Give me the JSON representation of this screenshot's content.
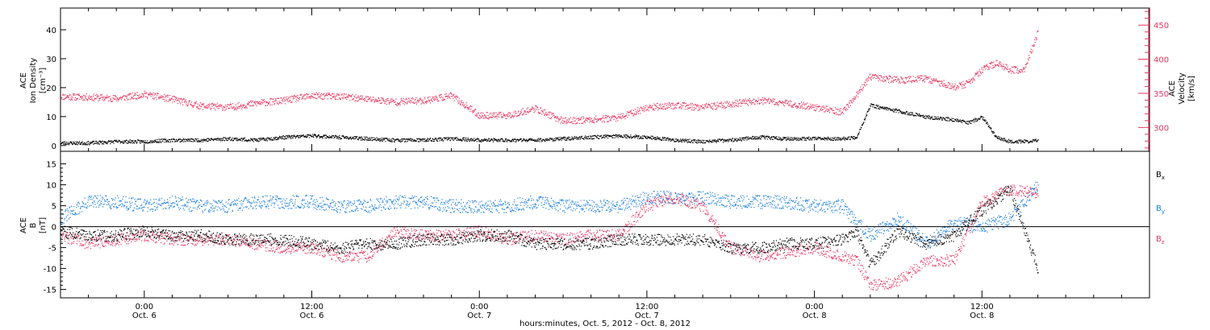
{
  "xaxis": {
    "title": "hours:minutes, Oct.  5, 2012 - Oct.  8, 2012",
    "ticks": [
      {
        "hour": 24,
        "time": "0:00",
        "day": "Oct. 6"
      },
      {
        "hour": 36,
        "time": "12:00",
        "day": "Oct. 6"
      },
      {
        "hour": 48,
        "time": "0:00",
        "day": "Oct. 7"
      },
      {
        "hour": 60,
        "time": "12:00",
        "day": "Oct. 7"
      },
      {
        "hour": 72,
        "time": "0:00",
        "day": "Oct. 8"
      },
      {
        "hour": 84,
        "time": "12:00",
        "day": "Oct. 8"
      }
    ],
    "range_hours": [
      18,
      96
    ]
  },
  "top_panel": {
    "left_label": [
      "ACE",
      "Ion Density",
      "[cm⁻³]"
    ],
    "left_ticks": [
      0,
      10,
      20,
      30,
      40
    ],
    "left_range": [
      -2,
      47.5
    ],
    "right_label": [
      "ACE",
      "Velocity",
      "[km/s]"
    ],
    "right_ticks": [
      300,
      350,
      400,
      450
    ],
    "right_range": [
      265,
      475
    ]
  },
  "bottom_panel": {
    "left_label": [
      "ACE",
      "B",
      "[nT]"
    ],
    "ticks": [
      -15,
      -10,
      -5,
      0,
      5,
      10,
      15
    ],
    "range": [
      -17,
      18
    ],
    "legend": [
      {
        "main": "B",
        "sub": "x",
        "color": "#000000"
      },
      {
        "main": "B",
        "sub": "y",
        "color": "#1a7ee0"
      },
      {
        "main": "B",
        "sub": "z",
        "color": "#e8365f"
      }
    ]
  },
  "colors": {
    "density": "#000000",
    "velocity": "#e8365f",
    "bx": "#000000",
    "by": "#1a7ee0",
    "bz": "#e8365f"
  },
  "chart_data": [
    {
      "type": "scatter",
      "series": [
        {
          "name": "Ion Density",
          "axis": "left",
          "x": [
            18,
            20,
            22,
            24,
            26,
            28,
            30,
            32,
            34,
            36,
            38,
            40,
            42,
            44,
            46,
            48,
            50,
            52,
            54,
            56,
            58,
            60,
            62,
            64,
            66,
            68,
            70,
            72,
            74,
            75,
            76,
            78,
            80,
            82,
            83,
            84,
            85,
            86,
            87,
            88
          ],
          "y": [
            1,
            1,
            1.5,
            1.5,
            2,
            2,
            2.5,
            2,
            3,
            3.5,
            3,
            2.5,
            2,
            2,
            2.5,
            2,
            2,
            2,
            2.5,
            3,
            3.5,
            3,
            2,
            1.5,
            2,
            3,
            2.5,
            2.5,
            2.5,
            3,
            14,
            12,
            10,
            9,
            8,
            10,
            3,
            1.5,
            1.5,
            2
          ]
        },
        {
          "name": "Velocity",
          "axis": "right",
          "x": [
            18,
            20,
            22,
            24,
            26,
            28,
            30,
            32,
            34,
            36,
            38,
            40,
            42,
            44,
            46,
            48,
            50,
            52,
            54,
            56,
            58,
            60,
            62,
            64,
            66,
            68,
            70,
            72,
            74,
            75,
            76,
            78,
            80,
            82,
            83,
            84,
            85,
            86,
            87,
            88
          ],
          "y": [
            346,
            345,
            343,
            349,
            342,
            332,
            330,
            336,
            340,
            347,
            346,
            342,
            338,
            340,
            347,
            318,
            318,
            328,
            310,
            312,
            315,
            330,
            333,
            330,
            335,
            340,
            336,
            330,
            323,
            348,
            375,
            370,
            372,
            360,
            365,
            385,
            395,
            385,
            385,
            440
          ]
        }
      ]
    },
    {
      "type": "scatter",
      "series": [
        {
          "name": "Bx",
          "x": [
            18,
            20,
            22,
            24,
            26,
            28,
            30,
            32,
            34,
            36,
            38,
            40,
            42,
            44,
            46,
            48,
            50,
            52,
            54,
            56,
            58,
            60,
            62,
            64,
            66,
            68,
            70,
            72,
            74,
            75,
            76,
            78,
            80,
            82,
            84,
            86,
            88
          ],
          "y": [
            -1,
            -2,
            -2,
            -1,
            -2,
            -2,
            -3,
            -3,
            -3,
            -4,
            -5,
            -4,
            -4,
            -3,
            -3,
            -2,
            -2,
            -4,
            -4,
            -4,
            -3,
            -3,
            -3,
            -3,
            -5,
            -5,
            -4,
            -4,
            -3,
            -1,
            -9,
            -1,
            -4,
            -2,
            4,
            9,
            -10
          ]
        },
        {
          "name": "By",
          "x": [
            18,
            20,
            22,
            24,
            26,
            28,
            30,
            32,
            34,
            36,
            38,
            40,
            42,
            44,
            46,
            48,
            50,
            52,
            54,
            56,
            58,
            60,
            62,
            64,
            66,
            68,
            70,
            72,
            74,
            75,
            76,
            78,
            80,
            82,
            84,
            86,
            88
          ],
          "y": [
            2,
            6,
            6,
            5,
            6,
            5,
            5,
            6,
            6,
            6,
            5,
            5,
            6,
            6,
            5,
            5,
            5,
            6,
            5,
            5,
            5,
            7,
            7,
            7,
            6,
            6,
            6,
            5,
            5,
            1,
            -2,
            2,
            -4,
            1,
            0,
            2,
            10
          ]
        },
        {
          "name": "Bz",
          "x": [
            18,
            20,
            22,
            24,
            26,
            28,
            30,
            32,
            34,
            36,
            38,
            40,
            42,
            44,
            46,
            48,
            50,
            52,
            54,
            56,
            58,
            60,
            62,
            64,
            66,
            68,
            70,
            72,
            74,
            75,
            76,
            78,
            80,
            82,
            84,
            86,
            88
          ],
          "y": [
            -2,
            -4,
            -3,
            -2,
            -3,
            -3,
            -3,
            -4,
            -5,
            -5,
            -7,
            -7,
            -1,
            -2,
            -2,
            -1,
            -3,
            -2,
            -3,
            -2,
            -2,
            5,
            7,
            5,
            -5,
            -7,
            -6,
            -5,
            -7,
            -8,
            -14,
            -13,
            -8,
            -8,
            6,
            9,
            8
          ]
        }
      ]
    }
  ]
}
